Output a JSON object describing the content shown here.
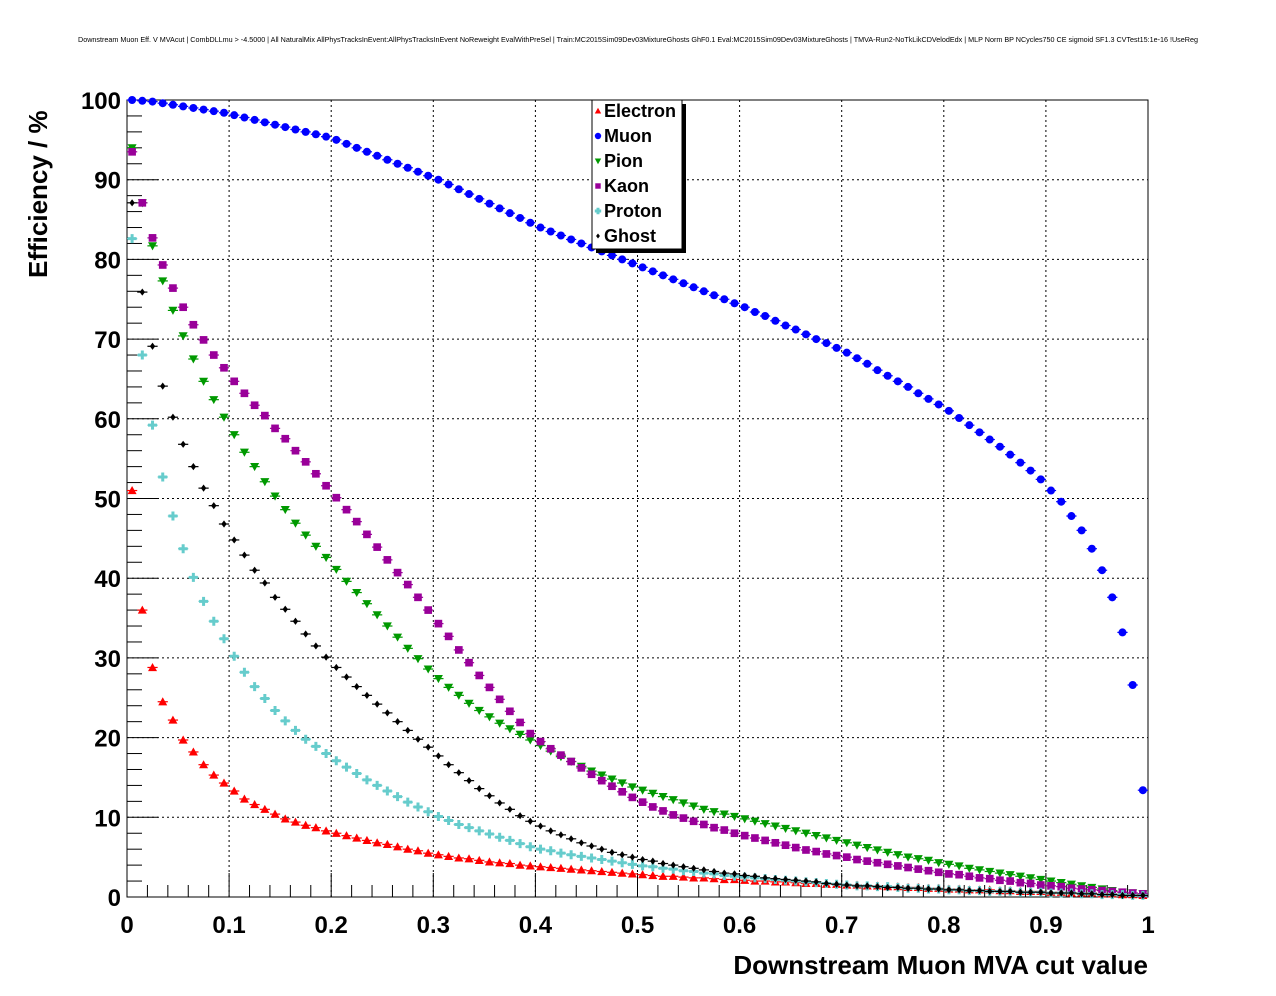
{
  "chart_data": {
    "type": "scatter",
    "title": "Downstream Muon Eff. V MVAcut | CombDLLmu > -4.5000 | All NaturalMix AllPhysTracksInEvent:AllPhysTracksInEvent NoReweight EvalWithPreSel | Train:MC2015Sim09Dev03MixtureGhosts GhF0.1 Eval:MC2015Sim09Dev03MixtureGhosts | TMVA-Run2-NoTkLikCDVelodEdx | MLP Norm BP NCycles750 CE sigmoid SF1.3 CVTest15:1e-16 !UseReg",
    "xlabel": "Downstream Muon MVA cut value",
    "ylabel": "Efficiency / %",
    "xlim": [
      0,
      1
    ],
    "ylim": [
      0,
      100
    ],
    "x_ticks": [
      "0",
      "0.1",
      "0.2",
      "0.3",
      "0.4",
      "0.5",
      "0.6",
      "0.7",
      "0.8",
      "0.9",
      "1"
    ],
    "y_ticks": [
      "0",
      "10",
      "20",
      "30",
      "40",
      "50",
      "60",
      "70",
      "80",
      "90",
      "100"
    ],
    "grid": true,
    "legend_position": "top-center",
    "x_start": 0.005,
    "x_step": 0.01,
    "series": [
      {
        "name": "Electron",
        "marker": "triangle-up",
        "color": "#ff0000",
        "values": [
          51.0,
          36.0,
          28.8,
          24.5,
          22.2,
          19.7,
          18.2,
          16.6,
          15.3,
          14.3,
          13.3,
          12.3,
          11.6,
          11.0,
          10.4,
          9.8,
          9.4,
          9.0,
          8.7,
          8.3,
          8.0,
          7.7,
          7.4,
          7.1,
          6.8,
          6.6,
          6.3,
          6.0,
          5.8,
          5.5,
          5.3,
          5.1,
          4.9,
          4.8,
          4.6,
          4.4,
          4.3,
          4.2,
          4.0,
          3.9,
          3.8,
          3.7,
          3.6,
          3.5,
          3.4,
          3.3,
          3.2,
          3.1,
          3.0,
          2.9,
          2.8,
          2.7,
          2.6,
          2.6,
          2.5,
          2.4,
          2.4,
          2.3,
          2.2,
          2.2,
          2.1,
          2.0,
          2.0,
          1.9,
          1.9,
          1.8,
          1.7,
          1.7,
          1.6,
          1.6,
          1.5,
          1.5,
          1.4,
          1.4,
          1.3,
          1.3,
          1.2,
          1.2,
          1.1,
          1.1,
          1.0,
          1.0,
          0.9,
          0.9,
          0.9,
          0.8,
          0.8,
          0.7,
          0.7,
          0.7,
          0.6,
          0.6,
          0.5,
          0.5,
          0.5,
          0.4,
          0.4,
          0.3,
          0.3,
          0.2
        ]
      },
      {
        "name": "Muon",
        "marker": "circle",
        "color": "#0000ff",
        "values": [
          100,
          99.9,
          99.8,
          99.6,
          99.4,
          99.2,
          99.0,
          98.8,
          98.6,
          98.4,
          98.1,
          97.8,
          97.5,
          97.2,
          96.9,
          96.6,
          96.3,
          96.0,
          95.7,
          95.4,
          95.0,
          94.5,
          94.0,
          93.5,
          93.0,
          92.5,
          92.0,
          91.5,
          91.0,
          90.5,
          90.0,
          89.4,
          88.8,
          88.2,
          87.6,
          87.0,
          86.4,
          85.8,
          85.2,
          84.6,
          84.0,
          83.5,
          83.0,
          82.5,
          82.0,
          81.5,
          81.0,
          80.5,
          80.0,
          79.5,
          79.0,
          78.5,
          78.0,
          77.5,
          77.0,
          76.5,
          76.0,
          75.5,
          75.0,
          74.5,
          74.0,
          73.4,
          72.9,
          72.3,
          71.7,
          71.2,
          70.6,
          70.0,
          69.5,
          68.9,
          68.3,
          67.6,
          66.9,
          66.1,
          65.4,
          64.7,
          64.0,
          63.2,
          62.5,
          61.8,
          61.0,
          60.1,
          59.2,
          58.3,
          57.4,
          56.5,
          55.5,
          54.5,
          53.5,
          52.4,
          51.0,
          49.6,
          47.8,
          46.0,
          43.7,
          41.0,
          37.6,
          33.2,
          26.6,
          13.4
        ]
      },
      {
        "name": "Pion",
        "marker": "triangle-down",
        "color": "#009900",
        "values": [
          94.0,
          87.1,
          81.7,
          77.3,
          73.6,
          70.4,
          67.5,
          64.7,
          62.4,
          60.2,
          58.0,
          55.8,
          54.0,
          52.1,
          50.3,
          48.6,
          46.9,
          45.4,
          44.0,
          42.6,
          41.1,
          39.6,
          38.2,
          36.8,
          35.4,
          34.0,
          32.6,
          31.2,
          29.9,
          28.6,
          27.4,
          26.3,
          25.3,
          24.3,
          23.4,
          22.6,
          21.8,
          21.1,
          20.4,
          19.7,
          19.0,
          18.3,
          17.6,
          17.0,
          16.4,
          15.8,
          15.3,
          14.8,
          14.3,
          13.8,
          13.4,
          13.0,
          12.6,
          12.2,
          11.8,
          11.4,
          11.0,
          10.7,
          10.4,
          10.1,
          9.8,
          9.5,
          9.2,
          8.9,
          8.6,
          8.3,
          8.0,
          7.7,
          7.4,
          7.1,
          6.8,
          6.5,
          6.2,
          5.9,
          5.6,
          5.3,
          5.0,
          4.8,
          4.6,
          4.3,
          4.1,
          3.9,
          3.6,
          3.4,
          3.2,
          3.0,
          2.8,
          2.6,
          2.4,
          2.2,
          2.0,
          1.8,
          1.6,
          1.4,
          1.2,
          1.0,
          0.8,
          0.6,
          0.5,
          0.4
        ]
      },
      {
        "name": "Kaon",
        "marker": "square",
        "color": "#990099",
        "values": [
          93.5,
          87.1,
          82.7,
          79.3,
          76.4,
          74.0,
          71.8,
          69.9,
          68.0,
          66.4,
          64.7,
          63.2,
          61.7,
          60.4,
          58.8,
          57.5,
          56.0,
          54.6,
          53.1,
          51.6,
          50.1,
          48.6,
          47.1,
          45.5,
          43.9,
          42.3,
          40.7,
          39.2,
          37.6,
          36.0,
          34.3,
          32.7,
          31.0,
          29.4,
          27.8,
          26.3,
          24.8,
          23.3,
          21.9,
          20.5,
          19.5,
          18.6,
          17.8,
          17.0,
          16.2,
          15.4,
          14.6,
          13.9,
          13.2,
          12.5,
          11.9,
          11.3,
          10.8,
          10.3,
          9.9,
          9.5,
          9.1,
          8.7,
          8.4,
          8.0,
          7.7,
          7.4,
          7.1,
          6.8,
          6.5,
          6.2,
          5.9,
          5.7,
          5.4,
          5.2,
          5.0,
          4.7,
          4.5,
          4.3,
          4.1,
          3.9,
          3.7,
          3.5,
          3.3,
          3.1,
          2.9,
          2.8,
          2.6,
          2.4,
          2.3,
          2.1,
          2.0,
          1.8,
          1.7,
          1.5,
          1.4,
          1.3,
          1.1,
          1.0,
          0.9,
          0.8,
          0.7,
          0.6,
          0.5,
          0.4
        ]
      },
      {
        "name": "Proton",
        "marker": "cross",
        "color": "#66cccc",
        "values": [
          82.6,
          68.0,
          59.2,
          52.7,
          47.8,
          43.7,
          40.1,
          37.1,
          34.6,
          32.4,
          30.2,
          28.2,
          26.4,
          24.9,
          23.4,
          22.1,
          20.9,
          19.8,
          18.9,
          18.0,
          17.1,
          16.3,
          15.5,
          14.7,
          14.0,
          13.3,
          12.6,
          11.9,
          11.3,
          10.7,
          10.1,
          9.6,
          9.1,
          8.7,
          8.3,
          7.9,
          7.5,
          7.1,
          6.7,
          6.3,
          6.0,
          5.8,
          5.5,
          5.3,
          5.1,
          4.9,
          4.7,
          4.5,
          4.3,
          4.1,
          3.9,
          3.8,
          3.6,
          3.5,
          3.3,
          3.2,
          3.0,
          2.9,
          2.7,
          2.6,
          2.5,
          2.4,
          2.3,
          2.2,
          2.1,
          2.0,
          1.9,
          1.8,
          1.7,
          1.6,
          1.5,
          1.4,
          1.4,
          1.3,
          1.3,
          1.2,
          1.1,
          1.1,
          1.0,
          1.0,
          0.9,
          0.9,
          0.8,
          0.8,
          0.7,
          0.7,
          0.7,
          0.6,
          0.6,
          0.6,
          0.5,
          0.5,
          0.5,
          0.4,
          0.4,
          0.3,
          0.3,
          0.3,
          0.2,
          0.2
        ]
      },
      {
        "name": "Ghost",
        "marker": "diamond",
        "color": "#000000",
        "values": [
          87.1,
          75.9,
          69.1,
          64.1,
          60.2,
          56.8,
          54.0,
          51.3,
          49.1,
          46.8,
          44.8,
          42.9,
          41.0,
          39.4,
          37.6,
          36.1,
          34.6,
          33.0,
          31.5,
          30.1,
          28.8,
          27.6,
          26.4,
          25.3,
          24.2,
          23.1,
          22.0,
          20.9,
          19.8,
          18.8,
          17.7,
          16.6,
          15.6,
          14.6,
          13.6,
          12.7,
          11.8,
          11.0,
          10.2,
          9.5,
          8.9,
          8.3,
          7.8,
          7.3,
          6.8,
          6.4,
          6.0,
          5.6,
          5.3,
          5.0,
          4.7,
          4.5,
          4.2,
          4.0,
          3.8,
          3.6,
          3.4,
          3.2,
          3.0,
          2.9,
          2.7,
          2.6,
          2.4,
          2.3,
          2.2,
          2.1,
          2.0,
          1.9,
          1.7,
          1.6,
          1.5,
          1.4,
          1.4,
          1.3,
          1.2,
          1.2,
          1.1,
          1.1,
          1.0,
          1.0,
          0.9,
          0.9,
          0.8,
          0.8,
          0.7,
          0.7,
          0.7,
          0.6,
          0.6,
          0.6,
          0.5,
          0.5,
          0.5,
          0.4,
          0.4,
          0.3,
          0.3,
          0.2,
          0.2,
          0.2
        ]
      }
    ]
  }
}
